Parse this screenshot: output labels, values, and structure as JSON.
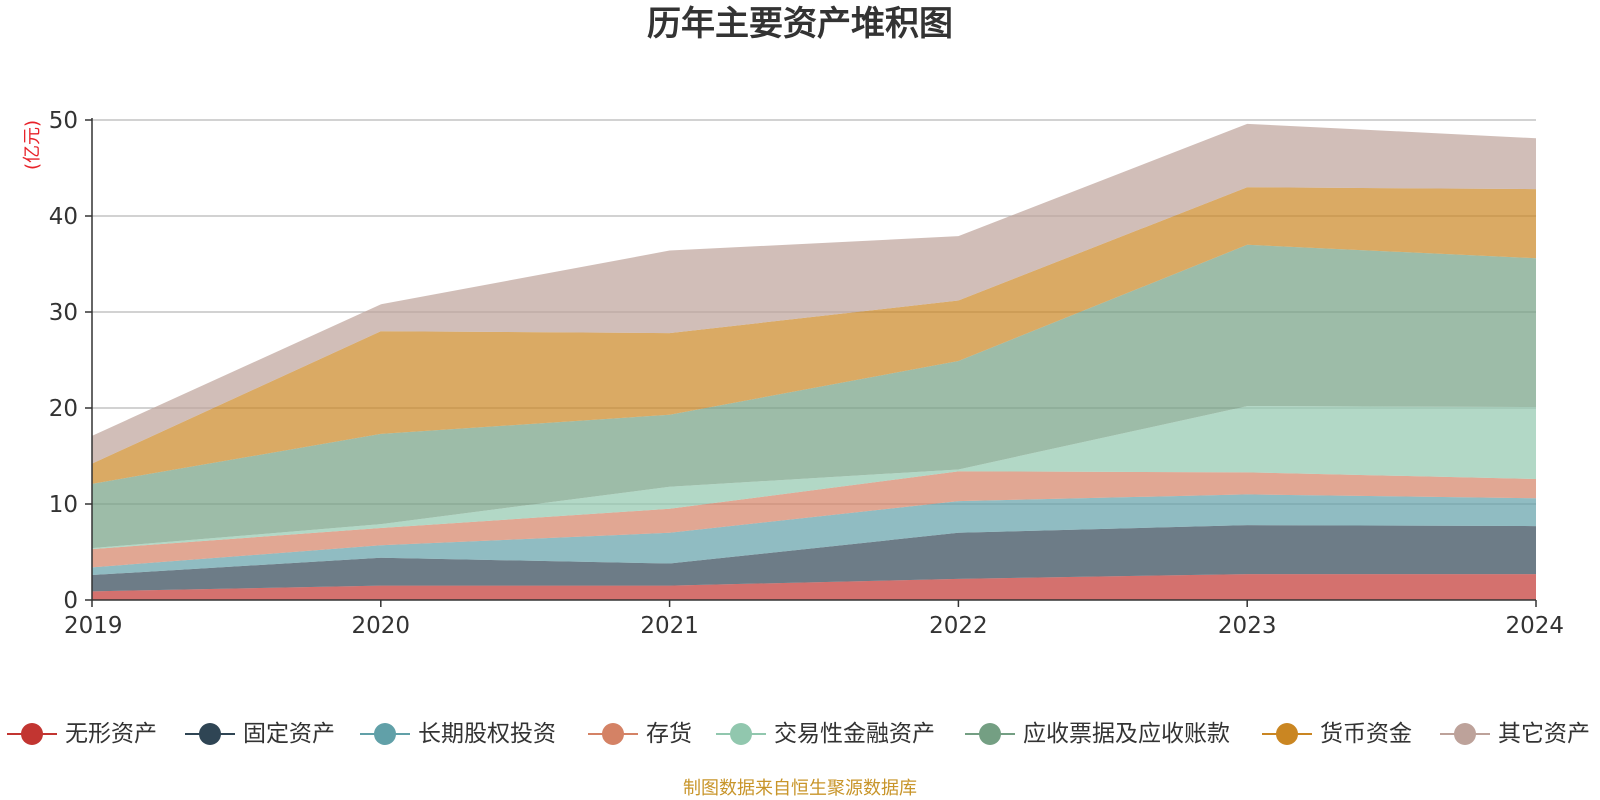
{
  "page": {
    "title": "历年主要资产堆积图",
    "source_note": "制图数据来自恒生聚源数据库"
  },
  "chart_data": {
    "type": "area",
    "stacked": true,
    "title": "历年主要资产堆积图",
    "ylabel": "(亿元)",
    "xlabel": "",
    "ylim": [
      0,
      50
    ],
    "yticks": [
      0,
      10,
      20,
      30,
      40,
      50
    ],
    "grid": true,
    "legend_position": "bottom",
    "categories": [
      "2019",
      "2020",
      "2021",
      "2022",
      "2023",
      "2024"
    ],
    "series": [
      {
        "name": "无形资产",
        "color": "#c23531",
        "values": [
          0.9,
          1.5,
          1.5,
          2.2,
          2.7,
          2.7
        ]
      },
      {
        "name": "固定资产",
        "color": "#2f4554",
        "values": [
          1.7,
          2.9,
          2.3,
          4.8,
          5.1,
          5.0
        ]
      },
      {
        "name": "长期股权投资",
        "color": "#61a0a8",
        "values": [
          0.8,
          1.3,
          3.2,
          3.3,
          3.2,
          2.9
        ]
      },
      {
        "name": "存货",
        "color": "#d48265",
        "values": [
          1.9,
          1.8,
          2.5,
          3.1,
          2.3,
          2.0
        ]
      },
      {
        "name": "交易性金融资产",
        "color": "#91c7ae",
        "values": [
          0.1,
          0.4,
          2.3,
          0.2,
          6.9,
          7.5
        ]
      },
      {
        "name": "应收票据及应收账款",
        "color": "#749f83",
        "values": [
          6.7,
          9.4,
          7.5,
          11.3,
          16.8,
          15.5
        ]
      },
      {
        "name": "货币资金",
        "color": "#ca8622",
        "values": [
          2.1,
          10.7,
          8.5,
          6.3,
          6.0,
          7.2
        ]
      },
      {
        "name": "其它资产",
        "color": "#bda29a",
        "values": [
          2.9,
          2.8,
          8.6,
          6.7,
          6.6,
          5.3
        ]
      }
    ]
  }
}
